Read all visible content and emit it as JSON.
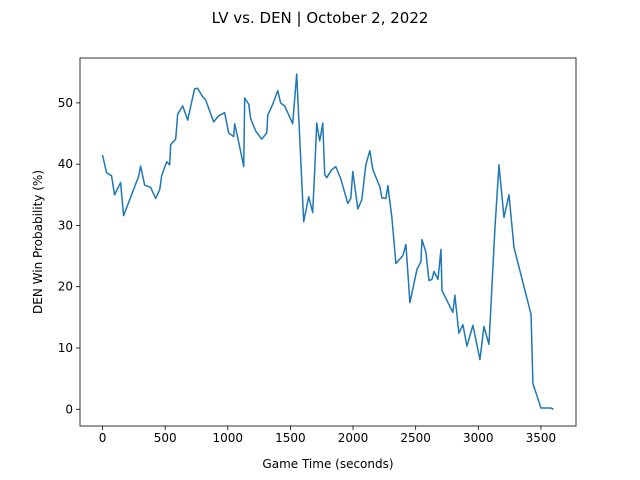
{
  "chart_data": {
    "type": "line",
    "title": "LV vs. DEN | October 2, 2022",
    "x_label": "Game Time (seconds)",
    "y_label": "DEN Win Probability (%)",
    "x": [
      0,
      32,
      72,
      96,
      144,
      168,
      288,
      304,
      336,
      384,
      424,
      456,
      472,
      512,
      536,
      544,
      584,
      600,
      640,
      680,
      712,
      735,
      759,
      799,
      823,
      887,
      927,
      975,
      1007,
      1047,
      1055,
      1087,
      1127,
      1135,
      1167,
      1183,
      1223,
      1271,
      1311,
      1319,
      1359,
      1399,
      1422,
      1454,
      1518,
      1550,
      1606,
      1646,
      1678,
      1694,
      1710,
      1734,
      1758,
      1774,
      1790,
      1830,
      1862,
      1902,
      1958,
      1982,
      1998,
      2038,
      2070,
      2102,
      2134,
      2158,
      2214,
      2230,
      2262,
      2278,
      2310,
      2342,
      2398,
      2422,
      2454,
      2510,
      2542,
      2550,
      2582,
      2606,
      2630,
      2646,
      2678,
      2702,
      2710,
      2797,
      2813,
      2845,
      2877,
      2909,
      2957,
      3013,
      3045,
      3085,
      3133,
      3165,
      3205,
      3245,
      3285,
      3421,
      3436,
      3500,
      3580,
      3600
    ],
    "series": [
      {
        "name": "DEN",
        "color": "#1f77b4",
        "values": [
          41.5,
          38.6,
          38.1,
          35.0,
          37.0,
          31.6,
          38.0,
          39.7,
          36.6,
          36.2,
          34.4,
          35.8,
          38.1,
          40.4,
          39.9,
          43.2,
          44.1,
          48.2,
          49.5,
          47.2,
          50.2,
          52.3,
          52.4,
          51.0,
          50.5,
          46.9,
          47.9,
          48.4,
          45.1,
          44.5,
          46.6,
          43.6,
          39.6,
          50.8,
          49.8,
          47.4,
          45.4,
          44.1,
          45.1,
          48.0,
          49.8,
          52.0,
          50.0,
          49.5,
          46.6,
          54.7,
          30.6,
          34.7,
          32.1,
          39.1,
          46.7,
          43.8,
          46.7,
          38.3,
          37.8,
          39.1,
          39.6,
          37.6,
          33.6,
          34.4,
          38.8,
          32.7,
          34.2,
          39.9,
          42.2,
          39.1,
          36.3,
          34.5,
          34.4,
          36.5,
          31.3,
          23.8,
          25.1,
          26.9,
          17.4,
          22.8,
          24.1,
          27.7,
          25.6,
          21.0,
          21.2,
          22.5,
          21.2,
          26.1,
          19.4,
          15.8,
          18.6,
          12.4,
          13.8,
          10.3,
          13.7,
          8.1,
          13.5,
          10.6,
          29.6,
          39.9,
          31.3,
          35.0,
          26.4,
          15.5,
          4.2,
          0.2,
          0.2,
          0.0
        ]
      }
    ],
    "xlim": [
      -180,
      3780
    ],
    "ylim": [
      -2.73,
      57.33
    ],
    "xticks": [
      0,
      500,
      1000,
      1500,
      2000,
      2500,
      3000,
      3500
    ],
    "yticks": [
      0,
      10,
      20,
      30,
      40,
      50
    ],
    "grid": false
  }
}
